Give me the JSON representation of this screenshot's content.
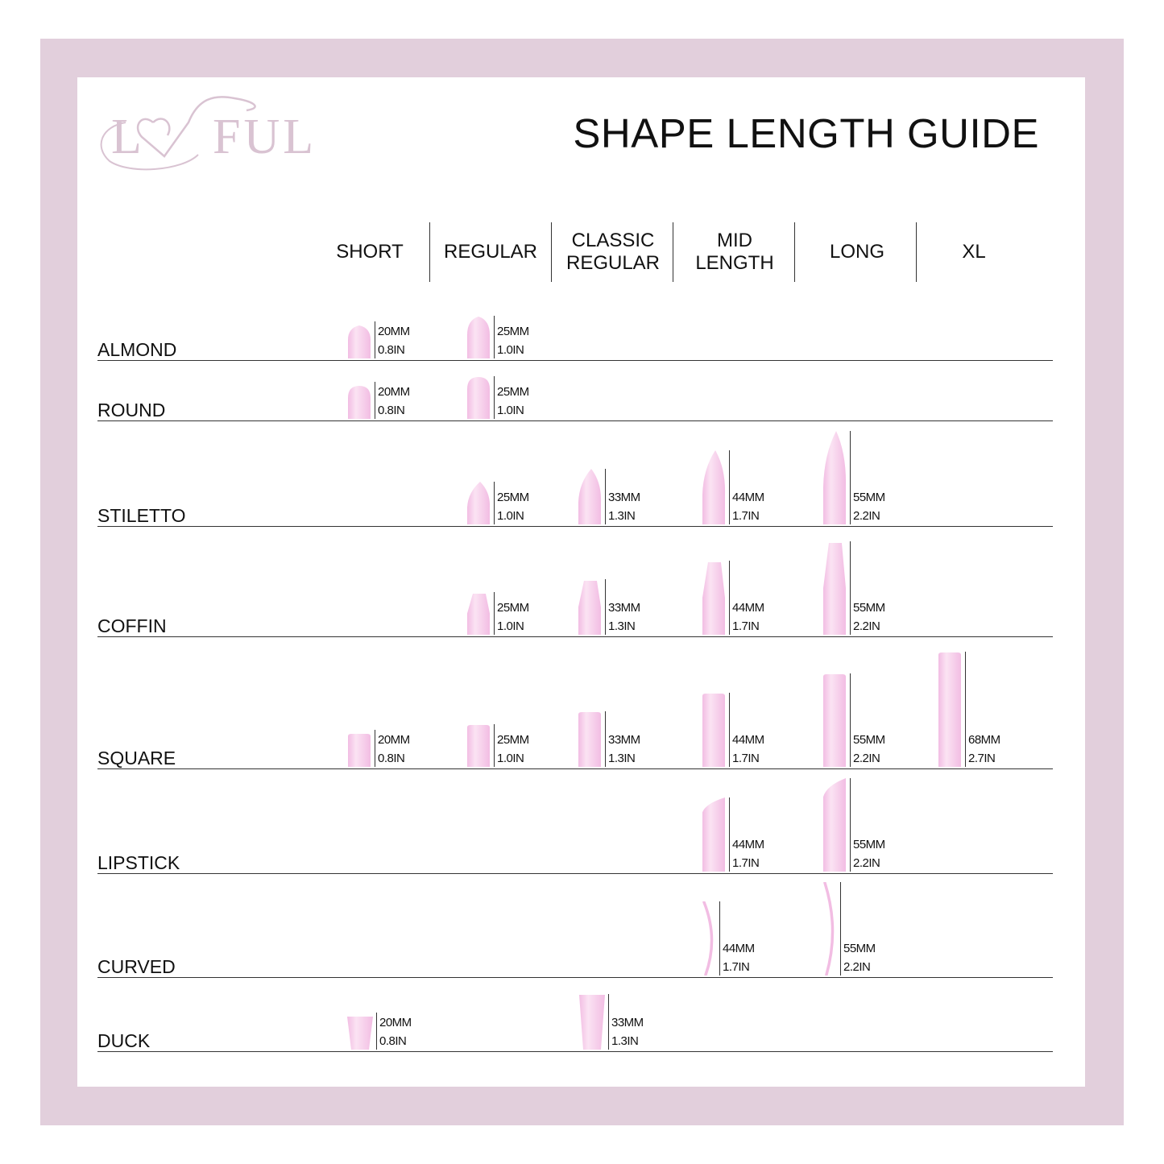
{
  "logo": {
    "text": "LOVFUL",
    "color": "#d9c3d2"
  },
  "title": "SHAPE LENGTH GUIDE",
  "colors": {
    "frame": "#e2cfdc",
    "nail": "#f2bde3",
    "nail_light": "#fbe3f3"
  },
  "columns": [
    "SHORT",
    "REGULAR",
    "CLASSIC\nREGULAR",
    "MID\nLENGTH",
    "LONG",
    "XL"
  ],
  "rows": [
    {
      "shape": "ALMOND",
      "cells": [
        {
          "col": 0,
          "mm": "20MM",
          "in": "0.8IN"
        },
        {
          "col": 1,
          "mm": "25MM",
          "in": "1.0IN"
        }
      ]
    },
    {
      "shape": "ROUND",
      "cells": [
        {
          "col": 0,
          "mm": "20MM",
          "in": "0.8IN"
        },
        {
          "col": 1,
          "mm": "25MM",
          "in": "1.0IN"
        }
      ]
    },
    {
      "shape": "STILETTO",
      "cells": [
        {
          "col": 1,
          "mm": "25MM",
          "in": "1.0IN"
        },
        {
          "col": 2,
          "mm": "33MM",
          "in": "1.3IN"
        },
        {
          "col": 3,
          "mm": "44MM",
          "in": "1.7IN"
        },
        {
          "col": 4,
          "mm": "55MM",
          "in": "2.2IN"
        }
      ]
    },
    {
      "shape": "COFFIN",
      "cells": [
        {
          "col": 1,
          "mm": "25MM",
          "in": "1.0IN"
        },
        {
          "col": 2,
          "mm": "33MM",
          "in": "1.3IN"
        },
        {
          "col": 3,
          "mm": "44MM",
          "in": "1.7IN"
        },
        {
          "col": 4,
          "mm": "55MM",
          "in": "2.2IN"
        }
      ]
    },
    {
      "shape": "SQUARE",
      "cells": [
        {
          "col": 0,
          "mm": "20MM",
          "in": "0.8IN"
        },
        {
          "col": 1,
          "mm": "25MM",
          "in": "1.0IN"
        },
        {
          "col": 2,
          "mm": "33MM",
          "in": "1.3IN"
        },
        {
          "col": 3,
          "mm": "44MM",
          "in": "1.7IN"
        },
        {
          "col": 4,
          "mm": "55MM",
          "in": "2.2IN"
        },
        {
          "col": 5,
          "mm": "68MM",
          "in": "2.7IN"
        }
      ]
    },
    {
      "shape": "LIPSTICK",
      "cells": [
        {
          "col": 3,
          "mm": "44MM",
          "in": "1.7IN"
        },
        {
          "col": 4,
          "mm": "55MM",
          "in": "2.2IN"
        }
      ]
    },
    {
      "shape": "CURVED",
      "cells": [
        {
          "col": 3,
          "mm": "44MM",
          "in": "1.7IN"
        },
        {
          "col": 4,
          "mm": "55MM",
          "in": "2.2IN"
        }
      ]
    },
    {
      "shape": "DUCK",
      "cells": [
        {
          "col": 0,
          "mm": "20MM",
          "in": "0.8IN"
        },
        {
          "col": 2,
          "mm": "33MM",
          "in": "1.3IN"
        }
      ]
    }
  ]
}
